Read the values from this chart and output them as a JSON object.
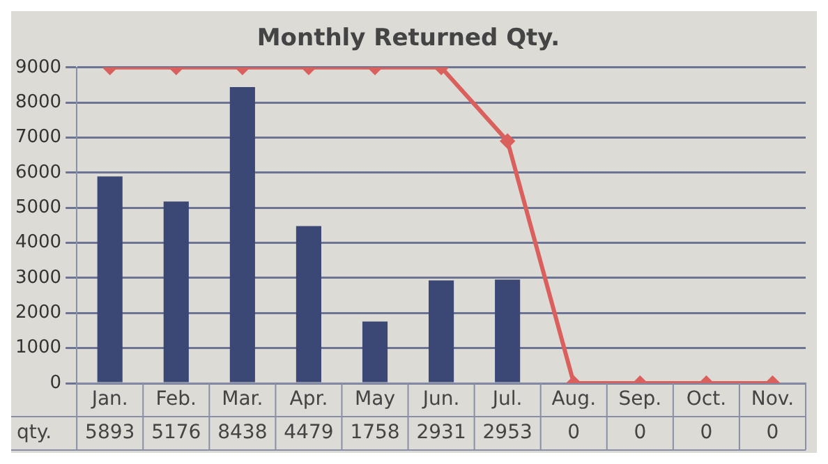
{
  "chart_data": {
    "type": "bar",
    "title": "Monthly Returned Qty.",
    "categories": [
      "Jan.",
      "Feb.",
      "Mar.",
      "Apr.",
      "May",
      "Jun.",
      "Jul.",
      "Aug.",
      "Sep.",
      "Oct.",
      "Nov."
    ],
    "series": [
      {
        "color": "#3b4775",
        "values": [
          5893,
          5176,
          8438,
          4479,
          1758,
          2931,
          2953,
          0,
          0,
          0,
          0
        ],
        "value_labels": [
          "5893",
          "5176",
          "8438",
          "4479",
          "1758",
          "2931",
          "2953",
          "0",
          "0",
          "0",
          "0"
        ]
      },
      {
        "type": "line",
        "color": "#d9605c",
        "values": [
          9000,
          9000,
          9000,
          9000,
          9000,
          9000,
          6900,
          0,
          0,
          0,
          0
        ],
        "marker": "diamond"
      }
    ],
    "annotations": [
      "qty."
    ],
    "ylim": [
      0,
      9000
    ],
    "yticks": [
      0,
      1000,
      2000,
      3000,
      4000,
      5000,
      6000,
      7000,
      8000,
      9000
    ],
    "grid": "y",
    "legend": false
  }
}
